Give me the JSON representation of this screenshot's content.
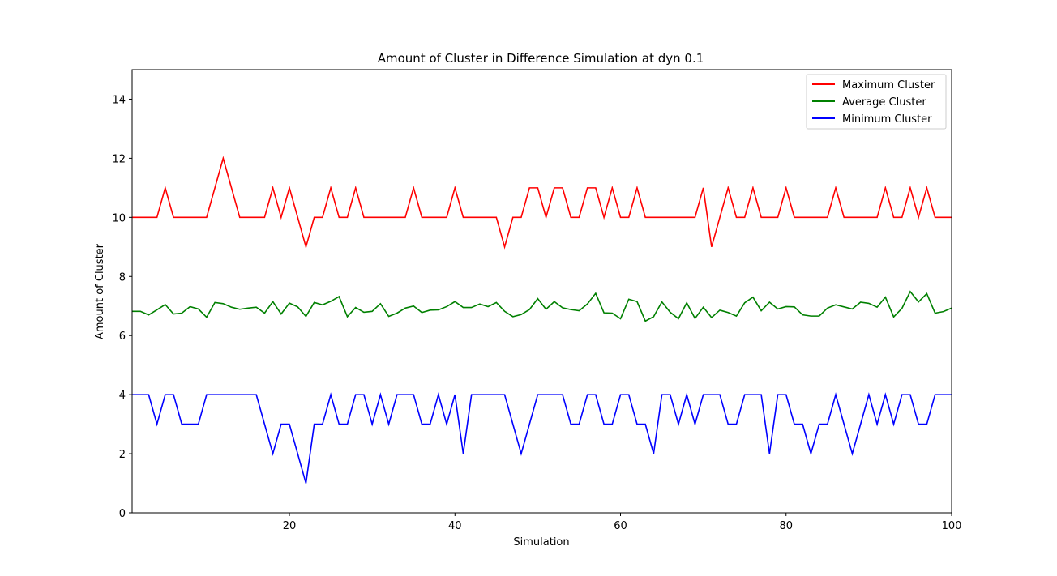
{
  "chart_data": {
    "type": "line",
    "title": "Amount of Cluster in Difference Simulation at dyn 0.1",
    "xlabel": "Simulation",
    "ylabel": "Amount of Cluster",
    "xlim": [
      1,
      100
    ],
    "ylim": [
      0,
      15
    ],
    "xticks": [
      20,
      40,
      60,
      80,
      100
    ],
    "yticks": [
      0,
      2,
      4,
      6,
      8,
      10,
      12,
      14
    ],
    "grid": false,
    "legend_position": "top-right",
    "x": [
      1,
      2,
      3,
      4,
      5,
      6,
      7,
      8,
      9,
      10,
      11,
      12,
      13,
      14,
      15,
      16,
      17,
      18,
      19,
      20,
      21,
      22,
      23,
      24,
      25,
      26,
      27,
      28,
      29,
      30,
      31,
      32,
      33,
      34,
      35,
      36,
      37,
      38,
      39,
      40,
      41,
      42,
      43,
      44,
      45,
      46,
      47,
      48,
      49,
      50,
      51,
      52,
      53,
      54,
      55,
      56,
      57,
      58,
      59,
      60,
      61,
      62,
      63,
      64,
      65,
      66,
      67,
      68,
      69,
      70,
      71,
      72,
      73,
      74,
      75,
      76,
      77,
      78,
      79,
      80,
      81,
      82,
      83,
      84,
      85,
      86,
      87,
      88,
      89,
      90,
      91,
      92,
      93,
      94,
      95,
      96,
      97,
      98,
      99,
      100
    ],
    "series": [
      {
        "name": "Maximum Cluster",
        "color": "#ff0000",
        "values": [
          10,
          10,
          10,
          10,
          11,
          10,
          10,
          10,
          10,
          10,
          11,
          12,
          11,
          10,
          10,
          10,
          10,
          11,
          10,
          11,
          10,
          9,
          10,
          10,
          11,
          10,
          10,
          11,
          10,
          10,
          10,
          10,
          10,
          10,
          11,
          10,
          10,
          10,
          10,
          11,
          10,
          10,
          10,
          10,
          10,
          9,
          10,
          10,
          11,
          11,
          10,
          11,
          11,
          10,
          10,
          11,
          11,
          10,
          11,
          10,
          10,
          11,
          10,
          10,
          10,
          10,
          10,
          10,
          10,
          11,
          9,
          10,
          11,
          10,
          10,
          11,
          10,
          10,
          10,
          11,
          10,
          10,
          10,
          10,
          10,
          11,
          10,
          10,
          10,
          10,
          10,
          11,
          10,
          10,
          11,
          10,
          11,
          10,
          10,
          10
        ]
      },
      {
        "name": "Average Cluster",
        "color": "#008000",
        "values": [
          6.82,
          6.82,
          6.7,
          6.87,
          7.05,
          6.73,
          6.76,
          6.98,
          6.9,
          6.62,
          7.12,
          7.08,
          6.96,
          6.89,
          6.93,
          6.96,
          6.76,
          7.15,
          6.73,
          7.1,
          6.97,
          6.65,
          7.12,
          7.04,
          7.16,
          7.32,
          6.64,
          6.95,
          6.79,
          6.82,
          7.08,
          6.65,
          6.76,
          6.93,
          7.0,
          6.78,
          6.86,
          6.87,
          6.98,
          7.15,
          6.95,
          6.95,
          7.07,
          6.98,
          7.12,
          6.82,
          6.64,
          6.71,
          6.88,
          7.25,
          6.89,
          7.15,
          6.94,
          6.88,
          6.84,
          7.07,
          7.43,
          6.77,
          6.76,
          6.57,
          7.23,
          7.15,
          6.49,
          6.64,
          7.14,
          6.79,
          6.57,
          7.11,
          6.58,
          6.96,
          6.61,
          6.86,
          6.78,
          6.66,
          7.11,
          7.3,
          6.84,
          7.13,
          6.9,
          6.98,
          6.97,
          6.7,
          6.66,
          6.66,
          6.93,
          7.04,
          6.97,
          6.9,
          7.13,
          7.09,
          6.96,
          7.3,
          6.63,
          6.92,
          7.49,
          7.14,
          7.42,
          6.76,
          6.81,
          6.93
        ]
      },
      {
        "name": "Minimum Cluster",
        "color": "#0000ff",
        "values": [
          4,
          4,
          4,
          3,
          4,
          4,
          3,
          3,
          3,
          4,
          4,
          4,
          4,
          4,
          4,
          4,
          3,
          2,
          3,
          3,
          2,
          1,
          3,
          3,
          4,
          3,
          3,
          4,
          4,
          3,
          4,
          3,
          4,
          4,
          4,
          3,
          3,
          4,
          3,
          4,
          2,
          4,
          4,
          4,
          4,
          4,
          3,
          2,
          3,
          4,
          4,
          4,
          4,
          3,
          3,
          4,
          4,
          3,
          3,
          4,
          4,
          3,
          3,
          2,
          4,
          4,
          3,
          4,
          3,
          4,
          4,
          4,
          3,
          3,
          4,
          4,
          4,
          2,
          4,
          4,
          3,
          3,
          2,
          3,
          3,
          4,
          3,
          2,
          3,
          4,
          3,
          4,
          3,
          4,
          4,
          3,
          3,
          4,
          4,
          4
        ]
      }
    ]
  }
}
